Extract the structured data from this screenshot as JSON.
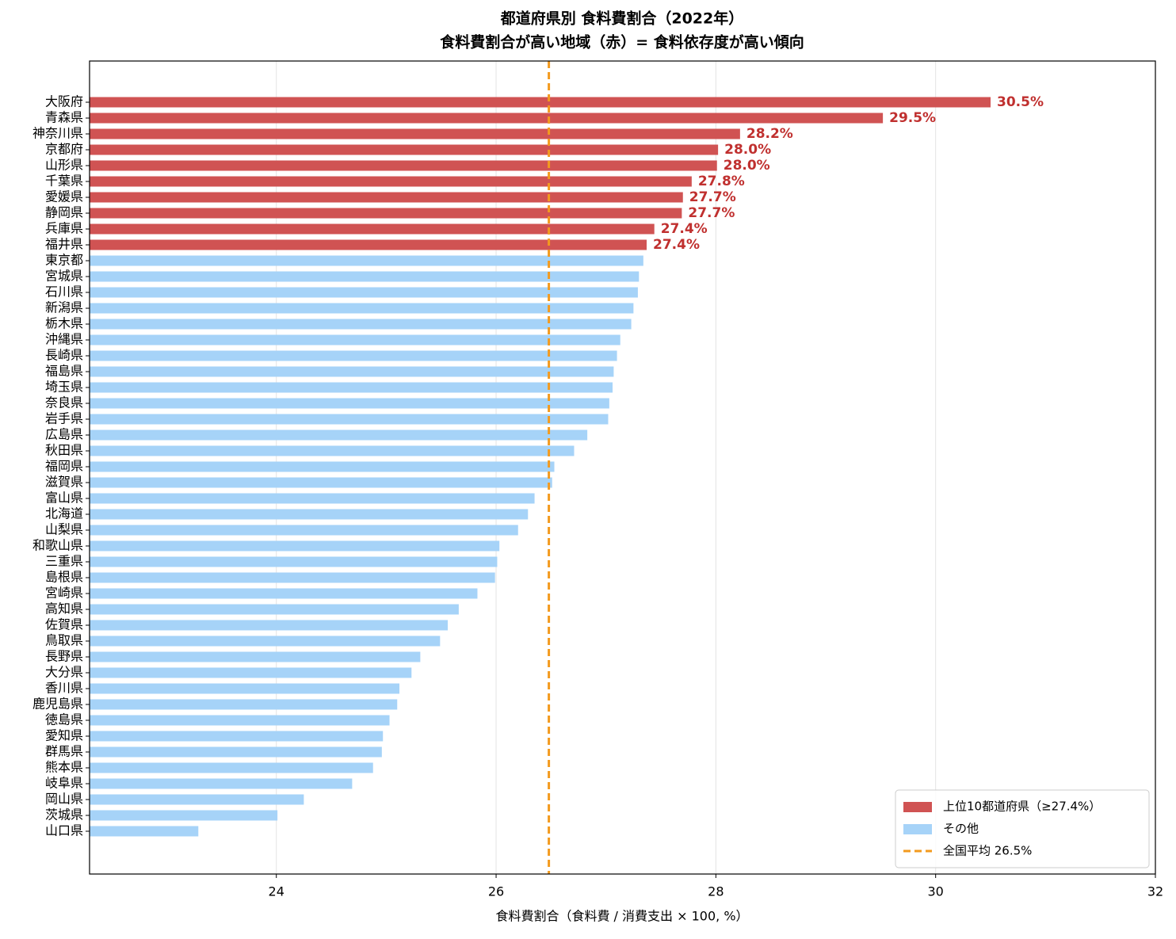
{
  "chart_data": {
    "type": "barh",
    "title": "都道府県別 食料費割合（2022年）",
    "subtitle": "食料費割合が高い地域（赤）= 食料依存度が高い傾向",
    "x_label": "食料費割合（食料費 / 消費支出 × 100, %）",
    "categories": [
      "大阪府",
      "青森県",
      "神奈川県",
      "京都府",
      "山形県",
      "千葉県",
      "愛媛県",
      "静岡県",
      "兵庫県",
      "福井県",
      "東京都",
      "宮城県",
      "石川県",
      "新潟県",
      "栃木県",
      "沖縄県",
      "長崎県",
      "福島県",
      "埼玉県",
      "奈良県",
      "岩手県",
      "広島県",
      "秋田県",
      "福岡県",
      "滋賀県",
      "富山県",
      "北海道",
      "山梨県",
      "和歌山県",
      "三重県",
      "島根県",
      "宮崎県",
      "高知県",
      "佐賀県",
      "鳥取県",
      "長野県",
      "大分県",
      "香川県",
      "鹿児島県",
      "徳島県",
      "愛知県",
      "群馬県",
      "熊本県",
      "岐阜県",
      "岡山県",
      "茨城県",
      "山口県"
    ],
    "series": [
      {
        "name": "上位10都道府県（≥27.4%）",
        "color": "#d05353",
        "values": [
          30.5,
          29.52,
          28.22,
          28.02,
          28.01,
          27.78,
          27.7,
          27.69,
          27.44,
          27.37,
          null,
          null,
          null,
          null,
          null,
          null,
          null,
          null,
          null,
          null,
          null,
          null,
          null,
          null,
          null,
          null,
          null,
          null,
          null,
          null,
          null,
          null,
          null,
          null,
          null,
          null,
          null,
          null,
          null,
          null,
          null,
          null,
          null,
          null,
          null,
          null,
          null
        ],
        "value_labels": [
          "30.5%",
          "29.5%",
          "28.2%",
          "28.0%",
          "28.0%",
          "27.8%",
          "27.7%",
          "27.7%",
          "27.4%",
          "27.4%",
          null,
          null,
          null,
          null,
          null,
          null,
          null,
          null,
          null,
          null,
          null,
          null,
          null,
          null,
          null,
          null,
          null,
          null,
          null,
          null,
          null,
          null,
          null,
          null,
          null,
          null,
          null,
          null,
          null,
          null,
          null,
          null,
          null,
          null,
          null,
          null,
          null
        ]
      },
      {
        "name": "その他",
        "color": "#a6d3f8",
        "values": [
          null,
          null,
          null,
          null,
          null,
          null,
          null,
          null,
          null,
          null,
          27.34,
          27.3,
          27.29,
          27.25,
          27.23,
          27.13,
          27.1,
          27.07,
          27.06,
          27.03,
          27.02,
          26.83,
          26.71,
          26.53,
          26.51,
          26.35,
          26.29,
          26.2,
          26.03,
          26.01,
          25.99,
          25.83,
          25.66,
          25.56,
          25.49,
          25.31,
          25.23,
          25.12,
          25.1,
          25.03,
          24.97,
          24.96,
          24.88,
          24.69,
          24.25,
          24.01,
          23.29
        ]
      }
    ],
    "reference_line": {
      "value": 26.48,
      "label": "全国平均 26.5%",
      "color": "#f39a1e"
    },
    "xlim": [
      22.3,
      32.0
    ],
    "xticks": [
      24,
      26,
      28,
      30,
      32
    ],
    "grid": true,
    "legend": "lower right"
  }
}
